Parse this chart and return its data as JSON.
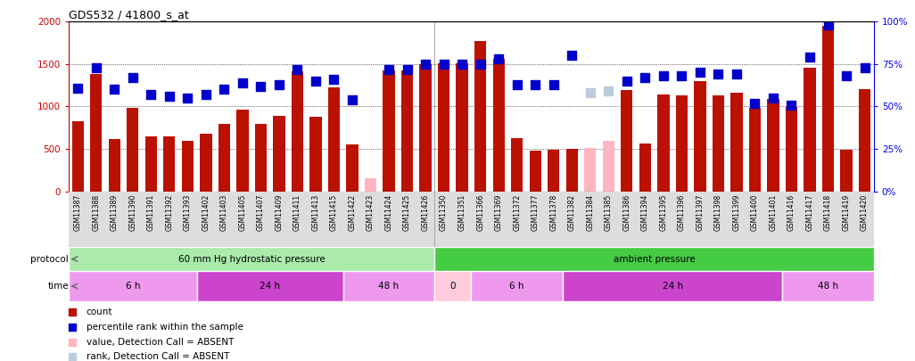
{
  "title": "GDS532 / 41800_s_at",
  "samples": [
    "GSM11387",
    "GSM11388",
    "GSM11389",
    "GSM11390",
    "GSM11391",
    "GSM11392",
    "GSM11393",
    "GSM11402",
    "GSM11403",
    "GSM11405",
    "GSM11407",
    "GSM11409",
    "GSM11411",
    "GSM11413",
    "GSM11415",
    "GSM11422",
    "GSM11423",
    "GSM11424",
    "GSM11425",
    "GSM11426",
    "GSM11350",
    "GSM11351",
    "GSM11366",
    "GSM11369",
    "GSM11372",
    "GSM11377",
    "GSM11378",
    "GSM11382",
    "GSM11384",
    "GSM11385",
    "GSM11386",
    "GSM11394",
    "GSM11395",
    "GSM11396",
    "GSM11397",
    "GSM11398",
    "GSM11399",
    "GSM11400",
    "GSM11401",
    "GSM11416",
    "GSM11417",
    "GSM11418",
    "GSM11419",
    "GSM11420"
  ],
  "bar_values": [
    830,
    1380,
    620,
    980,
    650,
    650,
    600,
    680,
    790,
    960,
    800,
    890,
    1420,
    880,
    1230,
    550,
    150,
    1430,
    1430,
    1500,
    1510,
    1510,
    1770,
    1560,
    630,
    480,
    490,
    500,
    510,
    590,
    1190,
    560,
    1140,
    1130,
    1300,
    1130,
    1160,
    980,
    1090,
    990,
    1460,
    1950,
    490,
    1200
  ],
  "bar_absent": [
    false,
    false,
    false,
    false,
    false,
    false,
    false,
    false,
    false,
    false,
    false,
    false,
    false,
    false,
    false,
    false,
    true,
    false,
    false,
    false,
    false,
    false,
    false,
    false,
    false,
    false,
    false,
    false,
    true,
    true,
    false,
    false,
    false,
    false,
    false,
    false,
    false,
    false,
    false,
    false,
    false,
    false,
    false,
    false
  ],
  "rank_values": [
    61,
    73,
    60,
    67,
    57,
    56,
    55,
    57,
    60,
    64,
    62,
    63,
    72,
    65,
    66,
    54,
    null,
    72,
    72,
    75,
    75,
    75,
    75,
    78,
    63,
    63,
    63,
    80,
    58,
    59,
    65,
    67,
    68,
    68,
    70,
    69,
    69,
    52,
    55,
    51,
    79,
    98,
    68,
    73
  ],
  "rank_absent": [
    false,
    false,
    false,
    false,
    false,
    false,
    false,
    false,
    false,
    false,
    false,
    false,
    false,
    false,
    false,
    false,
    true,
    false,
    false,
    false,
    false,
    false,
    false,
    false,
    false,
    false,
    false,
    false,
    true,
    true,
    false,
    false,
    false,
    false,
    false,
    false,
    false,
    false,
    false,
    false,
    false,
    false,
    false,
    false
  ],
  "protocol_groups": [
    {
      "label": "60 mm Hg hydrostatic pressure",
      "start": 0,
      "end": 20,
      "color": "#aaeaaa"
    },
    {
      "label": "ambient pressure",
      "start": 20,
      "end": 44,
      "color": "#44cc44"
    }
  ],
  "time_groups": [
    {
      "label": "6 h",
      "start": 0,
      "end": 7,
      "color": "#ee99ee"
    },
    {
      "label": "24 h",
      "start": 7,
      "end": 15,
      "color": "#cc44cc"
    },
    {
      "label": "48 h",
      "start": 15,
      "end": 20,
      "color": "#ee99ee"
    },
    {
      "label": "0",
      "start": 20,
      "end": 22,
      "color": "#ffccdd"
    },
    {
      "label": "6 h",
      "start": 22,
      "end": 27,
      "color": "#ee99ee"
    },
    {
      "label": "24 h",
      "start": 27,
      "end": 39,
      "color": "#cc44cc"
    },
    {
      "label": "48 h",
      "start": 39,
      "end": 44,
      "color": "#ee99ee"
    }
  ],
  "bar_color": "#bb1100",
  "bar_absent_color": "#ffb6c1",
  "rank_color": "#0000cc",
  "rank_absent_color": "#bbccdd",
  "ylim_left": [
    0,
    2000
  ],
  "ylim_right": [
    0,
    100
  ],
  "yticks_left": [
    0,
    500,
    1000,
    1500,
    2000
  ],
  "yticks_right": [
    0,
    25,
    50,
    75,
    100
  ],
  "grid_values": [
    500,
    1000,
    1500
  ],
  "separator_index": 20,
  "bg_color": "#ffffff",
  "legend": [
    {
      "color": "#bb1100",
      "marker": "s",
      "label": "count"
    },
    {
      "color": "#0000cc",
      "marker": "s",
      "label": "percentile rank within the sample"
    },
    {
      "color": "#ffb6c1",
      "marker": "s",
      "label": "value, Detection Call = ABSENT"
    },
    {
      "color": "#bbccdd",
      "marker": "s",
      "label": "rank, Detection Call = ABSENT"
    }
  ]
}
